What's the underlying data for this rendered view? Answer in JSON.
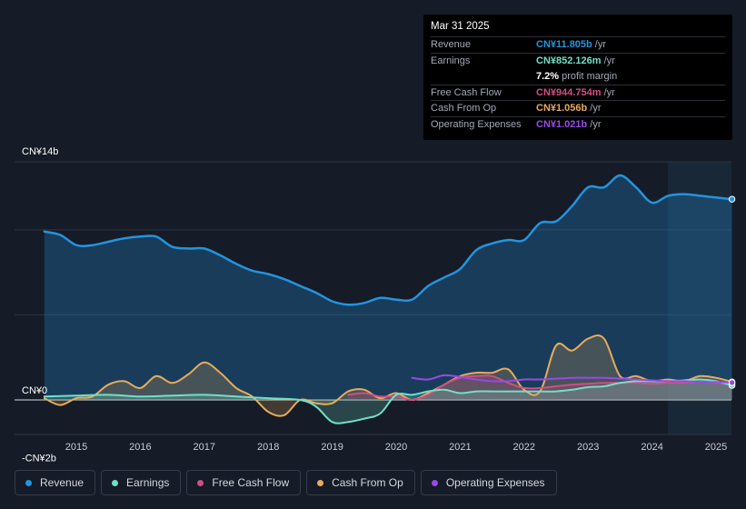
{
  "tooltip": {
    "date": "Mar 31 2025",
    "rows": [
      {
        "label": "Revenue",
        "value": "CN¥11.805b",
        "unit": "/yr",
        "color": "#2394df"
      },
      {
        "label": "Earnings",
        "value": "CN¥852.126m",
        "unit": "/yr",
        "color": "#70e0c8"
      },
      {
        "label": "",
        "value": "7.2%",
        "unit": "profit margin",
        "color": "#ffffff"
      },
      {
        "label": "Free Cash Flow",
        "value": "CN¥944.754m",
        "unit": "/yr",
        "color": "#cf4f84"
      },
      {
        "label": "Cash From Op",
        "value": "CN¥1.056b",
        "unit": "/yr",
        "color": "#e8ab5a"
      },
      {
        "label": "Operating Expenses",
        "value": "CN¥1.021b",
        "unit": "/yr",
        "color": "#9a48e8"
      }
    ]
  },
  "legend": [
    {
      "label": "Revenue",
      "color": "#2394df"
    },
    {
      "label": "Earnings",
      "color": "#70e0c8"
    },
    {
      "label": "Free Cash Flow",
      "color": "#cf4f84"
    },
    {
      "label": "Cash From Op",
      "color": "#e8ab5a"
    },
    {
      "label": "Operating Expenses",
      "color": "#9a48e8"
    }
  ],
  "chart_data": {
    "type": "area",
    "ylim": [
      -2,
      14
    ],
    "xlim": [
      2014.25,
      2025.3
    ],
    "forecast_start": 2024.25,
    "y_axis_labels": [
      {
        "value": 14,
        "text": "CN¥14b"
      },
      {
        "value": 0,
        "text": "CN¥0"
      },
      {
        "value": -2,
        "text": "-CN¥2b"
      }
    ],
    "gridlines": [
      14,
      10,
      5
    ],
    "x_ticks": [
      "2015",
      "2016",
      "2017",
      "2018",
      "2019",
      "2020",
      "2021",
      "2022",
      "2023",
      "2024",
      "2025"
    ],
    "series": [
      {
        "name": "Revenue",
        "color": "#2394df",
        "fill": true,
        "x": [
          2014.5,
          2014.75,
          2015.0,
          2015.25,
          2015.5,
          2015.75,
          2016.0,
          2016.25,
          2016.5,
          2016.75,
          2017.0,
          2017.25,
          2017.5,
          2017.75,
          2018.0,
          2018.25,
          2018.5,
          2018.75,
          2019.0,
          2019.25,
          2019.5,
          2019.75,
          2020.0,
          2020.25,
          2020.5,
          2020.75,
          2021.0,
          2021.25,
          2021.5,
          2021.75,
          2022.0,
          2022.25,
          2022.5,
          2022.75,
          2023.0,
          2023.25,
          2023.5,
          2023.75,
          2024.0,
          2024.25,
          2024.5,
          2024.75,
          2025.0,
          2025.25
        ],
        "values": [
          9.9,
          9.7,
          9.1,
          9.1,
          9.3,
          9.5,
          9.6,
          9.6,
          9.0,
          8.9,
          8.9,
          8.5,
          8.0,
          7.6,
          7.4,
          7.1,
          6.7,
          6.3,
          5.8,
          5.6,
          5.7,
          6.0,
          5.9,
          5.9,
          6.7,
          7.2,
          7.7,
          8.8,
          9.2,
          9.4,
          9.4,
          10.4,
          10.5,
          11.4,
          12.5,
          12.5,
          13.2,
          12.5,
          11.6,
          12.0,
          12.1,
          12.0,
          11.9,
          11.8
        ]
      },
      {
        "name": "Earnings",
        "color": "#70e0c8",
        "fill": true,
        "x": [
          2014.5,
          2015.0,
          2015.5,
          2016.0,
          2016.5,
          2017.0,
          2017.5,
          2018.0,
          2018.5,
          2018.75,
          2019.0,
          2019.25,
          2019.5,
          2019.75,
          2020.0,
          2020.25,
          2020.5,
          2020.75,
          2021.0,
          2021.25,
          2021.5,
          2021.75,
          2022.0,
          2022.25,
          2022.5,
          2022.75,
          2023.0,
          2023.25,
          2023.5,
          2023.75,
          2024.0,
          2024.25,
          2024.5,
          2024.75,
          2025.0,
          2025.25
        ],
        "values": [
          0.2,
          0.25,
          0.3,
          0.2,
          0.25,
          0.3,
          0.2,
          0.1,
          0.0,
          -0.4,
          -1.3,
          -1.3,
          -1.1,
          -0.8,
          0.3,
          0.3,
          0.5,
          0.6,
          0.4,
          0.5,
          0.5,
          0.5,
          0.5,
          0.5,
          0.5,
          0.6,
          0.75,
          0.8,
          1.0,
          1.1,
          1.1,
          1.1,
          1.15,
          1.2,
          1.1,
          0.85
        ]
      },
      {
        "name": "Free Cash Flow",
        "color": "#cf4f84",
        "fill": true,
        "x": [
          2019.25,
          2019.5,
          2019.75,
          2020.0,
          2020.25,
          2020.5,
          2020.75,
          2021.0,
          2021.25,
          2021.5,
          2021.75,
          2022.0,
          2022.25,
          2022.5,
          2022.75,
          2023.0,
          2023.25,
          2023.5,
          2023.75,
          2024.0,
          2024.25,
          2024.5,
          2024.75,
          2025.0,
          2025.25
        ],
        "values": [
          0.3,
          0.4,
          0.2,
          0.2,
          0.0,
          0.3,
          0.9,
          1.3,
          1.4,
          1.4,
          1.0,
          0.7,
          0.7,
          0.8,
          0.9,
          0.95,
          1.0,
          1.0,
          1.0,
          0.95,
          1.0,
          1.0,
          1.05,
          1.0,
          0.94
        ]
      },
      {
        "name": "Cash From Op",
        "color": "#e8ab5a",
        "fill": true,
        "x": [
          2014.5,
          2014.75,
          2015.0,
          2015.25,
          2015.5,
          2015.75,
          2016.0,
          2016.25,
          2016.5,
          2016.75,
          2017.0,
          2017.25,
          2017.5,
          2017.75,
          2018.0,
          2018.25,
          2018.5,
          2018.75,
          2019.0,
          2019.25,
          2019.5,
          2019.75,
          2020.0,
          2020.25,
          2020.5,
          2020.75,
          2021.0,
          2021.25,
          2021.5,
          2021.75,
          2022.0,
          2022.25,
          2022.5,
          2022.75,
          2023.0,
          2023.25,
          2023.5,
          2023.75,
          2024.0,
          2024.25,
          2024.5,
          2024.75,
          2025.0,
          2025.25
        ],
        "values": [
          0.1,
          -0.3,
          0.1,
          0.2,
          0.9,
          1.1,
          0.7,
          1.4,
          1.0,
          1.5,
          2.2,
          1.6,
          0.7,
          0.2,
          -0.7,
          -0.9,
          0.0,
          -0.2,
          -0.2,
          0.5,
          0.6,
          0.1,
          0.4,
          0.0,
          0.4,
          0.9,
          1.4,
          1.6,
          1.6,
          1.8,
          0.6,
          0.5,
          3.2,
          2.9,
          3.6,
          3.6,
          1.4,
          1.4,
          1.1,
          1.2,
          1.1,
          1.4,
          1.3,
          1.06
        ]
      },
      {
        "name": "Operating Expenses",
        "color": "#9a48e8",
        "fill": false,
        "x": [
          2020.25,
          2020.5,
          2020.75,
          2021.0,
          2021.25,
          2021.5,
          2021.75,
          2022.0,
          2022.25,
          2022.5,
          2022.75,
          2023.0,
          2023.25,
          2023.5,
          2023.75,
          2024.0,
          2024.25,
          2024.5,
          2024.75,
          2025.0,
          2025.25
        ],
        "values": [
          1.3,
          1.2,
          1.45,
          1.35,
          1.2,
          1.1,
          1.1,
          1.2,
          1.2,
          1.25,
          1.3,
          1.3,
          1.3,
          1.25,
          1.2,
          1.15,
          1.1,
          1.1,
          1.05,
          1.05,
          1.02
        ]
      }
    ]
  }
}
